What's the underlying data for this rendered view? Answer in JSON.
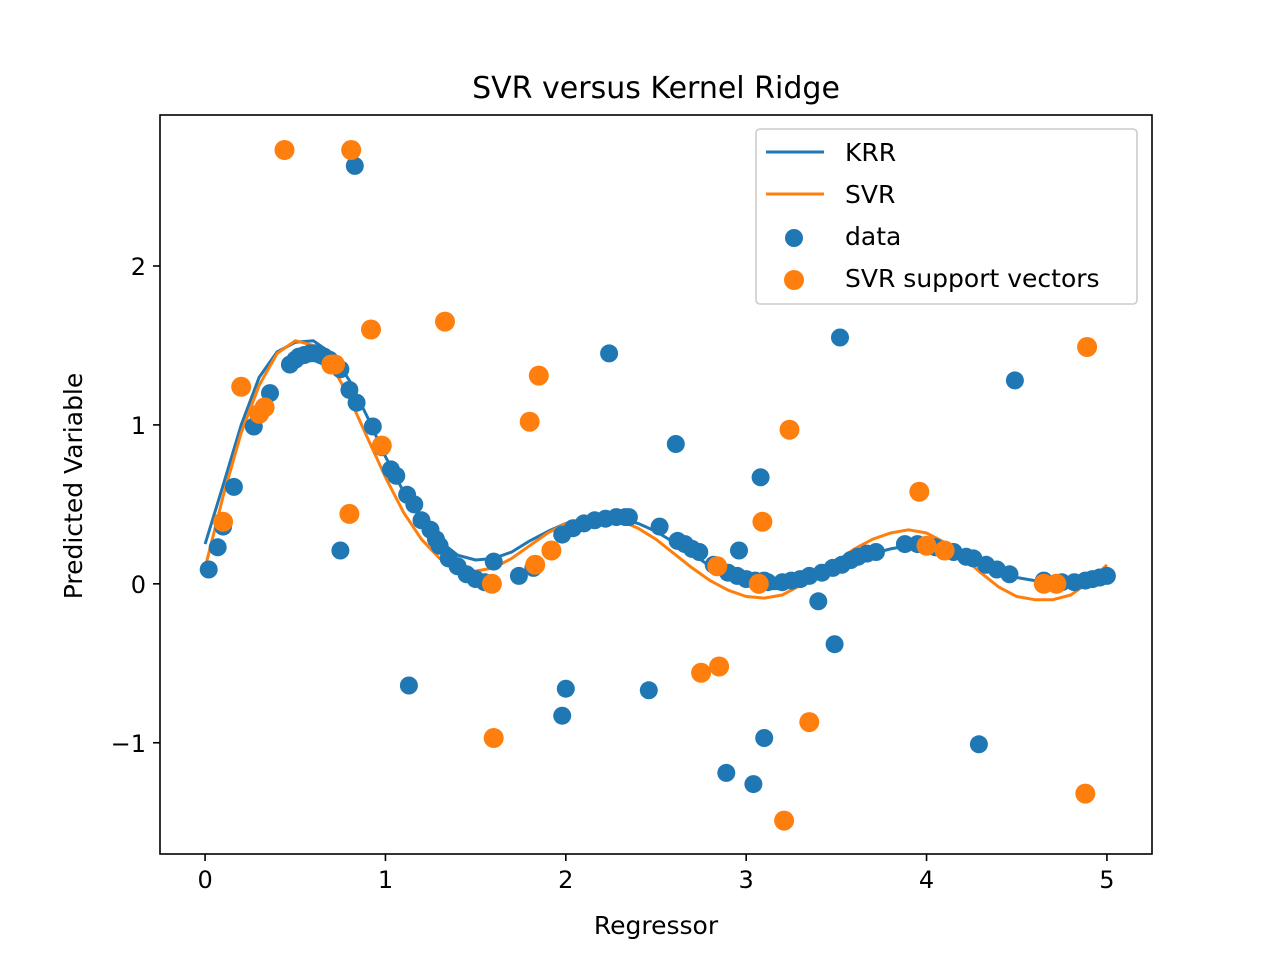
{
  "chart_data": {
    "type": "scatter",
    "title": "SVR versus Kernel Ridge",
    "xlabel": "Regressor",
    "ylabel": "Predicted Variable",
    "xlim": [
      -0.25,
      5.25
    ],
    "ylim": [
      -1.7,
      2.95
    ],
    "xticks": [
      {
        "value": 0,
        "label": "0"
      },
      {
        "value": 1,
        "label": "1"
      },
      {
        "value": 2,
        "label": "2"
      },
      {
        "value": 3,
        "label": "3"
      },
      {
        "value": 4,
        "label": "4"
      },
      {
        "value": 5,
        "label": "5"
      }
    ],
    "yticks": [
      {
        "value": -1,
        "label": "−1"
      },
      {
        "value": 0,
        "label": "0"
      },
      {
        "value": 1,
        "label": "1"
      },
      {
        "value": 2,
        "label": "2"
      }
    ],
    "grid": false,
    "legend_position": "top-right",
    "legend": [
      {
        "label": "KRR",
        "kind": "line",
        "series": "KRR"
      },
      {
        "label": "SVR",
        "kind": "line",
        "series": "SVR"
      },
      {
        "label": "data",
        "kind": "marker",
        "series": "data"
      },
      {
        "label": "SVR support vectors",
        "kind": "marker",
        "series": "SVR support vectors"
      }
    ],
    "colors": {
      "KRR": "#1f77b4",
      "SVR": "#ff7f0e",
      "data": "#1f77b4",
      "SVR support vectors": "#ff7f0e"
    },
    "lines": [
      {
        "name": "KRR",
        "x": [
          0.0,
          0.1,
          0.2,
          0.3,
          0.4,
          0.5,
          0.6,
          0.7,
          0.8,
          0.9,
          1.0,
          1.1,
          1.2,
          1.3,
          1.4,
          1.5,
          1.6,
          1.7,
          1.8,
          1.9,
          2.0,
          2.1,
          2.2,
          2.3,
          2.4,
          2.5,
          2.6,
          2.7,
          2.8,
          2.9,
          3.0,
          3.1,
          3.2,
          3.3,
          3.4,
          3.5,
          3.6,
          3.7,
          3.8,
          3.9,
          4.0,
          4.1,
          4.2,
          4.3,
          4.4,
          4.5,
          4.6,
          4.7,
          4.8,
          4.9,
          5.0
        ],
        "y": [
          0.25,
          0.62,
          1.0,
          1.3,
          1.46,
          1.52,
          1.53,
          1.45,
          1.28,
          1.05,
          0.8,
          0.58,
          0.4,
          0.27,
          0.18,
          0.15,
          0.16,
          0.2,
          0.27,
          0.33,
          0.38,
          0.41,
          0.42,
          0.41,
          0.38,
          0.33,
          0.26,
          0.19,
          0.11,
          0.05,
          0.0,
          -0.03,
          -0.03,
          0.0,
          0.05,
          0.1,
          0.15,
          0.19,
          0.22,
          0.24,
          0.24,
          0.22,
          0.18,
          0.13,
          0.08,
          0.04,
          0.02,
          0.01,
          0.02,
          0.03,
          0.04
        ]
      },
      {
        "name": "SVR",
        "x": [
          0.0,
          0.1,
          0.2,
          0.3,
          0.4,
          0.5,
          0.6,
          0.7,
          0.8,
          0.9,
          1.0,
          1.1,
          1.2,
          1.3,
          1.4,
          1.5,
          1.6,
          1.7,
          1.8,
          1.9,
          2.0,
          2.1,
          2.2,
          2.3,
          2.4,
          2.5,
          2.6,
          2.7,
          2.8,
          2.9,
          3.0,
          3.1,
          3.2,
          3.3,
          3.4,
          3.5,
          3.6,
          3.7,
          3.8,
          3.9,
          4.0,
          4.1,
          4.2,
          4.3,
          4.4,
          4.5,
          4.6,
          4.7,
          4.8,
          4.9,
          5.0
        ],
        "y": [
          0.1,
          0.55,
          0.95,
          1.25,
          1.45,
          1.53,
          1.5,
          1.38,
          1.17,
          0.92,
          0.67,
          0.45,
          0.28,
          0.16,
          0.1,
          0.08,
          0.1,
          0.16,
          0.24,
          0.32,
          0.38,
          0.41,
          0.42,
          0.4,
          0.35,
          0.28,
          0.19,
          0.1,
          0.02,
          -0.04,
          -0.08,
          -0.09,
          -0.07,
          -0.01,
          0.06,
          0.14,
          0.22,
          0.28,
          0.32,
          0.34,
          0.32,
          0.26,
          0.17,
          0.07,
          -0.02,
          -0.08,
          -0.1,
          -0.1,
          -0.07,
          0.01,
          0.12
        ]
      }
    ],
    "scatter": [
      {
        "name": "data",
        "x": [
          0.02,
          0.07,
          0.1,
          0.16,
          0.27,
          0.3,
          0.36,
          0.47,
          0.5,
          0.52,
          0.55,
          0.58,
          0.61,
          0.64,
          0.66,
          0.69,
          0.72,
          0.75,
          0.8,
          0.84,
          0.93,
          0.98,
          1.03,
          1.06,
          1.12,
          1.16,
          1.2,
          1.25,
          1.28,
          1.3,
          1.35,
          1.4,
          1.45,
          1.5,
          1.55,
          1.6,
          1.74,
          1.82,
          1.98,
          2.04,
          2.1,
          2.16,
          2.22,
          2.28,
          2.33,
          2.35,
          2.52,
          2.62,
          2.66,
          2.7,
          2.74,
          2.82,
          2.9,
          2.95,
          3.0,
          3.05,
          3.1,
          3.12,
          3.2,
          3.25,
          3.3,
          3.35,
          3.42,
          3.48,
          3.53,
          3.58,
          3.62,
          3.67,
          3.72,
          3.88,
          3.95,
          4.05,
          4.15,
          4.22,
          4.26,
          4.33,
          4.39,
          4.46,
          4.65,
          4.75,
          4.82,
          4.88,
          4.92,
          4.96,
          5.0,
          1.13,
          1.98,
          2.0,
          2.24,
          2.46,
          2.61,
          2.89,
          2.96,
          3.04,
          3.08,
          3.1,
          3.4,
          3.49,
          3.52,
          4.29,
          4.49,
          0.83,
          0.75
        ],
        "y": [
          0.09,
          0.23,
          0.36,
          0.61,
          0.99,
          1.07,
          1.2,
          1.38,
          1.41,
          1.43,
          1.44,
          1.45,
          1.45,
          1.44,
          1.43,
          1.41,
          1.38,
          1.35,
          1.22,
          1.14,
          0.99,
          0.86,
          0.72,
          0.68,
          0.56,
          0.5,
          0.4,
          0.34,
          0.28,
          0.24,
          0.16,
          0.11,
          0.06,
          0.03,
          0.01,
          0.14,
          0.05,
          0.1,
          0.31,
          0.35,
          0.38,
          0.4,
          0.41,
          0.42,
          0.42,
          0.42,
          0.36,
          0.27,
          0.25,
          0.22,
          0.2,
          0.12,
          0.07,
          0.05,
          0.03,
          0.02,
          0.02,
          0.01,
          0.01,
          0.02,
          0.03,
          0.05,
          0.07,
          0.1,
          0.12,
          0.15,
          0.17,
          0.19,
          0.2,
          0.25,
          0.25,
          0.23,
          0.2,
          0.17,
          0.16,
          0.12,
          0.09,
          0.06,
          0.02,
          0.01,
          0.01,
          0.02,
          0.03,
          0.04,
          0.05,
          -0.64,
          -0.83,
          -0.66,
          1.45,
          -0.67,
          0.88,
          -1.19,
          0.21,
          -1.26,
          0.67,
          -0.97,
          -0.11,
          -0.38,
          1.55,
          -1.01,
          1.28,
          2.63,
          0.21
        ]
      },
      {
        "name": "SVR support vectors",
        "x": [
          0.1,
          0.2,
          0.3,
          0.33,
          0.44,
          0.7,
          0.72,
          0.8,
          0.81,
          0.92,
          0.98,
          1.33,
          1.59,
          1.6,
          1.8,
          1.83,
          1.85,
          1.92,
          2.75,
          2.84,
          2.85,
          3.07,
          3.09,
          3.21,
          3.24,
          3.35,
          3.96,
          4.0,
          4.1,
          4.65,
          4.72,
          4.88,
          4.89
        ],
        "y": [
          0.39,
          1.24,
          1.07,
          1.11,
          2.73,
          1.38,
          1.38,
          0.44,
          2.73,
          1.6,
          0.87,
          1.65,
          0.0,
          -0.97,
          1.02,
          0.12,
          1.31,
          0.21,
          -0.56,
          0.11,
          -0.52,
          0.0,
          0.39,
          -1.49,
          0.97,
          -0.87,
          0.58,
          0.24,
          0.21,
          0.0,
          0.0,
          -1.32,
          1.49
        ]
      }
    ]
  }
}
